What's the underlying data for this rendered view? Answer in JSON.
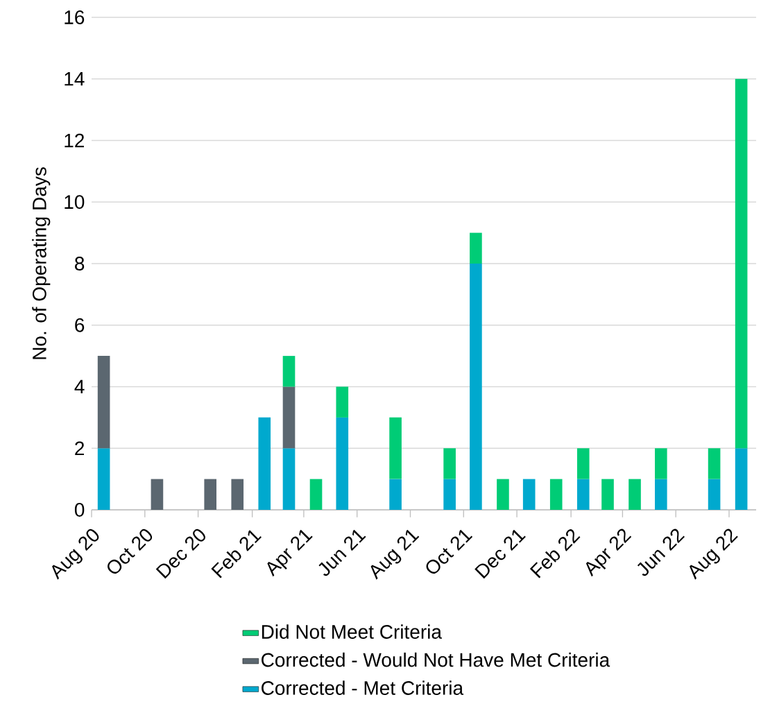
{
  "chart_data": {
    "type": "bar",
    "stacked": true,
    "ylabel": "No. of Operating Days",
    "x": [
      "2020-08-15",
      "2020-09-15",
      "2020-10-15",
      "2020-11-15",
      "2020-12-15",
      "2021-01-15",
      "2021-02-15",
      "2021-03-15",
      "2021-04-15",
      "2021-05-15",
      "2021-06-15",
      "2021-07-15",
      "2021-08-15",
      "2021-09-15",
      "2021-10-15",
      "2021-11-15",
      "2021-12-15",
      "2022-01-15",
      "2022-02-15",
      "2022-03-15",
      "2022-04-15",
      "2022-05-15",
      "2022-06-15",
      "2022-07-15",
      "2022-08-15"
    ],
    "series": [
      {
        "name": "Corrected - Met Criteria",
        "color": "#00a9ce",
        "values": [
          2,
          null,
          null,
          null,
          null,
          null,
          3,
          2,
          null,
          3,
          null,
          1,
          null,
          1,
          8,
          null,
          1,
          null,
          1,
          null,
          null,
          1,
          null,
          1,
          2
        ]
      },
      {
        "name": "Corrected - Would Not Have Met Criteria",
        "color": "#5b6770",
        "values": [
          3,
          null,
          1,
          null,
          1,
          1,
          null,
          2,
          null,
          null,
          null,
          null,
          null,
          null,
          null,
          null,
          null,
          null,
          null,
          null,
          null,
          null,
          null,
          null,
          null
        ]
      },
      {
        "name": "Did Not Meet Criteria",
        "color": "#00cc76",
        "values": [
          null,
          null,
          null,
          null,
          null,
          null,
          null,
          1,
          1,
          1,
          null,
          2,
          null,
          1,
          1,
          1,
          null,
          1,
          1,
          1,
          1,
          1,
          null,
          1,
          12
        ]
      }
    ],
    "xlim": [
      "2020-08-01",
      "2022-09-01"
    ],
    "xticks": [
      {
        "value": "2020-08-01",
        "label": "Aug 20"
      },
      {
        "value": "2020-10-01",
        "label": "Oct 20"
      },
      {
        "value": "2020-12-01",
        "label": "Dec 20"
      },
      {
        "value": "2021-02-01",
        "label": "Feb 21"
      },
      {
        "value": "2021-04-01",
        "label": "Apr 21"
      },
      {
        "value": "2021-06-01",
        "label": "Jun 21"
      },
      {
        "value": "2021-08-01",
        "label": "Aug 21"
      },
      {
        "value": "2021-10-01",
        "label": "Oct 21"
      },
      {
        "value": "2021-12-01",
        "label": "Dec 21"
      },
      {
        "value": "2022-02-01",
        "label": "Feb 22"
      },
      {
        "value": "2022-04-01",
        "label": "Apr 22"
      },
      {
        "value": "2022-06-01",
        "label": "Jun 22"
      },
      {
        "value": "2022-08-01",
        "label": "Aug 22"
      }
    ],
    "ylim": [
      0,
      16
    ],
    "yticks": [
      0,
      2,
      4,
      6,
      8,
      10,
      12,
      14,
      16
    ],
    "grid": "y",
    "legend": "bottom"
  }
}
